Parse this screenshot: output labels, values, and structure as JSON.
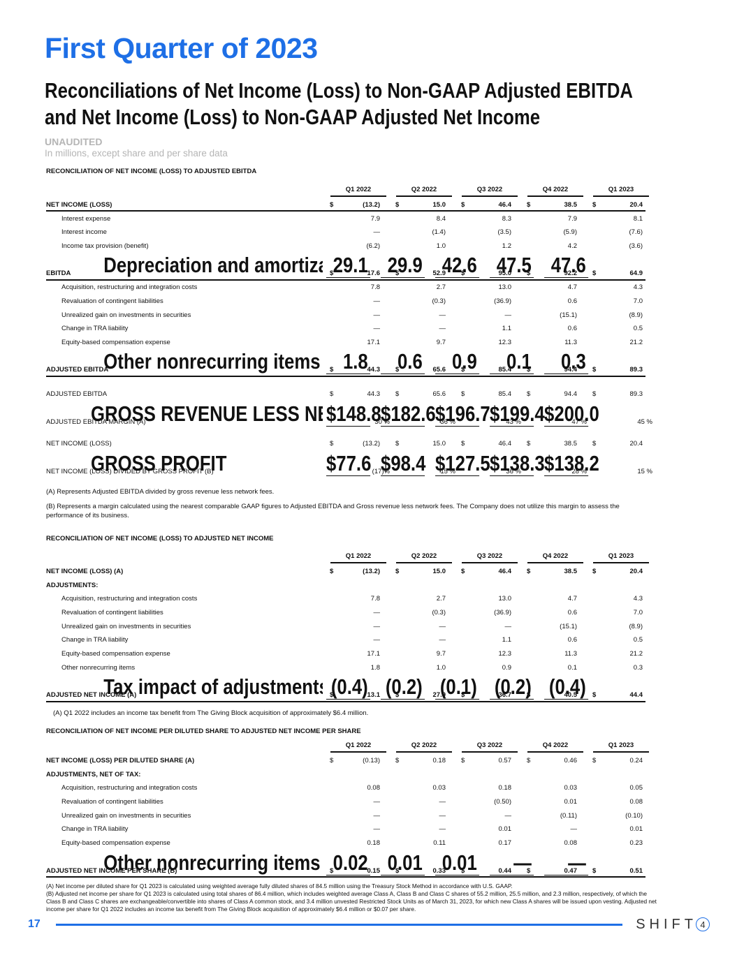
{
  "page": {
    "title": "First Quarter of 2023",
    "subtitle_line1": "Reconciliations of Net Income (Loss) to Non-GAAP Adjusted EBITDA",
    "subtitle_line2": "and Net Income (Loss) to Non-GAAP Adjusted Net Income",
    "unaudited": "UNAUDITED",
    "units": "In millions, except share and per share data",
    "page_number": "17",
    "logo_text": "SHIFT",
    "logo_mark": "4"
  },
  "columns": [
    "Q1 2022",
    "Q2 2022",
    "Q3 2022",
    "Q4 2022",
    "Q1 2023"
  ],
  "section1": {
    "heading": "RECONCILIATION OF NET INCOME (LOSS) TO ADJUSTED EBITDA",
    "rows": [
      {
        "label": "NET INCOME (LOSS)",
        "values": [
          "(13.2)",
          "15.0",
          "46.4",
          "38.5",
          "20.4"
        ],
        "bold": true,
        "dollar": true,
        "style": "total"
      },
      {
        "label": "Interest expense",
        "values": [
          "7.9",
          "8.4",
          "8.3",
          "7.9",
          "8.1"
        ],
        "indent": true
      },
      {
        "label": "Interest income",
        "values": [
          "—",
          "(1.4)",
          "(3.5)",
          "(5.9)",
          "(7.6)"
        ],
        "indent": true
      },
      {
        "label": "Income tax provision (benefit)",
        "values": [
          "(6.2)",
          "1.0",
          "1.2",
          "4.2",
          "(3.6)"
        ],
        "indent": true
      },
      {
        "label": "Depreciation and amortization expense",
        "values": [
          "29.1",
          "29.9",
          "42.6",
          "47.5",
          "47.6"
        ],
        "indent": true,
        "style": "sub"
      },
      {
        "label": "EBITDA",
        "values": [
          "17.6",
          "52.9",
          "95.0",
          "92.2",
          "64.9"
        ],
        "bold": true,
        "dollar": true,
        "style": "total"
      },
      {
        "label": "Acquisition, restructuring and integration costs",
        "values": [
          "7.8",
          "2.7",
          "13.0",
          "4.7",
          "4.3"
        ],
        "indent": true
      },
      {
        "label": "Revaluation of contingent liabilities",
        "values": [
          "—",
          "(0.3)",
          "(36.9)",
          "0.6",
          "7.0"
        ],
        "indent": true
      },
      {
        "label": "Unrealized gain on investments in securities",
        "values": [
          "—",
          "—",
          "—",
          "(15.1)",
          "(8.9)"
        ],
        "indent": true
      },
      {
        "label": "Change in TRA liability",
        "values": [
          "—",
          "—",
          "1.1",
          "0.6",
          "0.5"
        ],
        "indent": true
      },
      {
        "label": "Equity-based compensation expense",
        "values": [
          "17.1",
          "9.7",
          "12.3",
          "11.3",
          "21.2"
        ],
        "indent": true
      },
      {
        "label": "Other nonrecurring items",
        "values": [
          "1.8",
          "0.6",
          "0.9",
          "0.1",
          "0.3"
        ],
        "indent": true,
        "style": "sub"
      },
      {
        "label": "ADJUSTED EBITDA",
        "values": [
          "44.3",
          "65.6",
          "85.4",
          "94.4",
          "89.3"
        ],
        "bold": true,
        "dollar": true,
        "style": "total"
      }
    ],
    "margin_rows": [
      {
        "label": "ADJUSTED EBITDA",
        "values": [
          "44.3",
          "65.6",
          "85.4",
          "94.4",
          "89.3"
        ],
        "dollar": true
      },
      {
        "label": "GROSS REVENUE LESS NETWORK FEES",
        "values": [
          "148.8",
          "182.6",
          "196.7",
          "199.4",
          "200.0"
        ],
        "dollar": true,
        "style": "sub"
      },
      {
        "label": "ADJUSTED EBITDA MARGIN (A)",
        "values": [
          "30 %",
          "36 %",
          "43 %",
          "47 %",
          "45 %"
        ],
        "pct": true
      }
    ],
    "gp_rows": [
      {
        "label": "NET INCOME (LOSS)",
        "values": [
          "(13.2)",
          "15.0",
          "46.4",
          "38.5",
          "20.4"
        ],
        "dollar": true
      },
      {
        "label": "GROSS PROFIT",
        "values": [
          "77.6",
          "98.4",
          "127.5",
          "138.3",
          "138.2"
        ],
        "dollar": true,
        "style": "sub"
      },
      {
        "label": "NET INCOME (LOSS) DIVIDED BY GROSS PROFIT (B)",
        "values": [
          "(17)%",
          "15 %",
          "36 %",
          "28 %",
          "15 %"
        ],
        "pct": true
      }
    ],
    "note_a": "(A) Represents Adjusted EBITDA divided by gross revenue less network fees.",
    "note_b": "(B) Represents a margin calculated using the nearest comparable GAAP figures to Adjusted EBITDA and Gross revenue less network fees. The Company does not utilize this margin to assess the performance of its business."
  },
  "section2": {
    "heading": "RECONCILIATION OF NET INCOME (LOSS) TO ADJUSTED NET INCOME",
    "rows": [
      {
        "label": "NET INCOME (LOSS) (A)",
        "values": [
          "(13.2)",
          "15.0",
          "46.4",
          "38.5",
          "20.4"
        ],
        "bold": true,
        "dollar": true
      },
      {
        "label": "ADJUSTMENTS:",
        "values": [
          "",
          "",
          "",
          "",
          ""
        ],
        "bold": true
      },
      {
        "label": "Acquisition, restructuring and integration costs",
        "values": [
          "7.8",
          "2.7",
          "13.0",
          "4.7",
          "4.3"
        ],
        "indent": true
      },
      {
        "label": "Revaluation of contingent liabilities",
        "values": [
          "—",
          "(0.3)",
          "(36.9)",
          "0.6",
          "7.0"
        ],
        "indent": true
      },
      {
        "label": "Unrealized gain on investments in securities",
        "values": [
          "—",
          "—",
          "—",
          "(15.1)",
          "(8.9)"
        ],
        "indent": true
      },
      {
        "label": "Change in TRA liability",
        "values": [
          "—",
          "—",
          "1.1",
          "0.6",
          "0.5"
        ],
        "indent": true
      },
      {
        "label": "Equity-based compensation expense",
        "values": [
          "17.1",
          "9.7",
          "12.3",
          "11.3",
          "21.2"
        ],
        "indent": true
      },
      {
        "label": "Other nonrecurring items",
        "values": [
          "1.8",
          "1.0",
          "0.9",
          "0.1",
          "0.3"
        ],
        "indent": true
      },
      {
        "label": "Tax impact of adjustments",
        "values": [
          "(0.4)",
          "(0.2)",
          "(0.1)",
          "(0.2)",
          "(0.4)"
        ],
        "indent": true,
        "style": "sub"
      },
      {
        "label": "ADJUSTED NET INCOME (A)",
        "values": [
          "13.1",
          "27.9",
          "36.7",
          "40.5",
          "44.4"
        ],
        "bold": true,
        "dollar": true,
        "style": "total"
      }
    ],
    "note_a": "(A) Q1 2022 includes an income tax benefit from The Giving Block acquisition of approximately $6.4 million."
  },
  "section3": {
    "heading": "RECONCILIATION OF NET INCOME PER DILUTED SHARE TO ADJUSTED NET INCOME PER SHARE",
    "rows": [
      {
        "label": "NET INCOME (LOSS) PER DILUTED SHARE (A)",
        "values": [
          "(0.13)",
          "0.18",
          "0.57",
          "0.46",
          "0.24"
        ],
        "bold": true,
        "dollar": true,
        "light_values": true
      },
      {
        "label": "ADJUSTMENTS, NET OF TAX:",
        "values": [
          "",
          "",
          "",
          "",
          ""
        ],
        "bold": true
      },
      {
        "label": "Acquisition, restructuring and integration costs",
        "values": [
          "0.08",
          "0.03",
          "0.18",
          "0.03",
          "0.05"
        ],
        "indent": true
      },
      {
        "label": "Revaluation of contingent liabilities",
        "values": [
          "—",
          "—",
          "(0.50)",
          "0.01",
          "0.08"
        ],
        "indent": true
      },
      {
        "label": "Unrealized gain on investments in securities",
        "values": [
          "—",
          "—",
          "—",
          "(0.11)",
          "(0.10)"
        ],
        "indent": true
      },
      {
        "label": "Change in TRA liability",
        "values": [
          "—",
          "—",
          "0.01",
          "—",
          "0.01"
        ],
        "indent": true
      },
      {
        "label": "Equity-based compensation expense",
        "values": [
          "0.18",
          "0.11",
          "0.17",
          "0.08",
          "0.23"
        ],
        "indent": true
      },
      {
        "label": "Other nonrecurring items",
        "values": [
          "0.02",
          "0.01",
          "0.01",
          "—",
          "—"
        ],
        "indent": true,
        "style": "sub"
      },
      {
        "label": "ADJUSTED NET INCOME PER SHARE (B)",
        "values": [
          "0.15",
          "0.33",
          "0.44",
          "0.47",
          "0.51"
        ],
        "bold": true,
        "dollar": true,
        "style": "total"
      }
    ],
    "note_a": "(A) Net income per diluted share for Q1 2023 is calculated using weighted average fully diluted shares of 84.5 million using the Treasury Stock Method in accordance with U.S. GAAP.",
    "note_b": "(B) Adjusted net income per share for Q1 2023 is calculated using total shares of 86.4 million, which includes weighted average Class A, Class B and Class C shares of 55.2 million, 25.5 million, and 2.3 million, respectively, of which the Class B and Class C shares are exchangeable/convertible into shares of Class A common stock, and 3.4 million unvested Restricted Stock Units as of March 31, 2023, for which new Class A shares will be issued upon vesting. Adjusted net income per share for Q1 2022 includes an income tax benefit from The Giving Block acquisition of approximately $6.4 million or $0.07 per share."
  }
}
